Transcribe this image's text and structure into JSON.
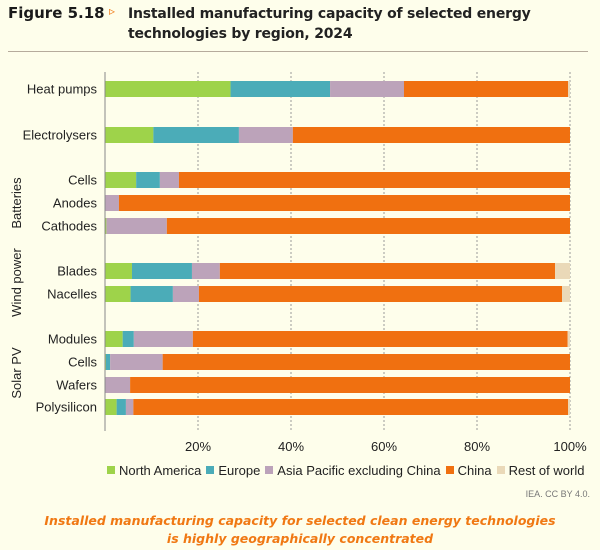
{
  "figure": {
    "number": "Figure 5.18",
    "arrow": "▹",
    "title": "Installed manufacturing capacity of selected energy technologies by region, 2024",
    "credit": "IEA. CC BY 4.0.",
    "caption_line1": "Installed manufacturing capacity for selected clean energy technologies",
    "caption_line2": "is highly geographically concentrated"
  },
  "chart_data": {
    "type": "bar",
    "orientation": "horizontal",
    "stacked": "percent",
    "title": "Installed manufacturing capacity of selected energy technologies by region, 2024",
    "xlabel": "",
    "ylabel": "",
    "xlim": [
      0,
      100
    ],
    "xticks": [
      20,
      40,
      60,
      80,
      100
    ],
    "xtick_labels": [
      "20%",
      "40%",
      "60%",
      "80%",
      "100%"
    ],
    "grid": "vertical dotted",
    "legend_position": "bottom",
    "categories": [
      "Heat pumps",
      "Electrolysers",
      "Cells",
      "Anodes",
      "Cathodes",
      "Blades",
      "Nacelles",
      "Modules",
      "Cells",
      "Wafers",
      "Polysilicon"
    ],
    "groups": [
      {
        "name": "",
        "categories": [
          0
        ]
      },
      {
        "name": "",
        "categories": [
          1
        ]
      },
      {
        "name": "Batteries",
        "categories": [
          2,
          3,
          4
        ]
      },
      {
        "name": "Wind power",
        "categories": [
          5,
          6
        ]
      },
      {
        "name": "Solar PV",
        "categories": [
          7,
          8,
          9,
          10
        ]
      }
    ],
    "series": [
      {
        "name": "North America",
        "color": "#9ed34a",
        "values": [
          27.0,
          10.4,
          6.7,
          0.0,
          0.3,
          5.8,
          5.5,
          3.8,
          0.2,
          0.0,
          2.5
        ]
      },
      {
        "name": "Europe",
        "color": "#4bacb8",
        "values": [
          21.4,
          18.4,
          5.1,
          0.0,
          0.0,
          12.9,
          9.1,
          2.4,
          0.9,
          0.0,
          2.0
        ]
      },
      {
        "name": "Asia Pacific excluding China",
        "color": "#bca3ba",
        "values": [
          15.9,
          11.6,
          4.1,
          3.0,
          13.0,
          6.0,
          5.6,
          12.7,
          11.3,
          5.4,
          1.6
        ]
      },
      {
        "name": "China",
        "color": "#f07010",
        "values": [
          35.3,
          59.6,
          84.1,
          97.0,
          86.7,
          72.1,
          78.1,
          80.6,
          87.6,
          94.6,
          93.5
        ]
      },
      {
        "name": "Rest of world",
        "color": "#ead9b8",
        "values": [
          0.4,
          0.0,
          0.0,
          0.0,
          0.0,
          3.2,
          1.7,
          0.5,
          0.0,
          0.0,
          0.4
        ]
      }
    ]
  }
}
